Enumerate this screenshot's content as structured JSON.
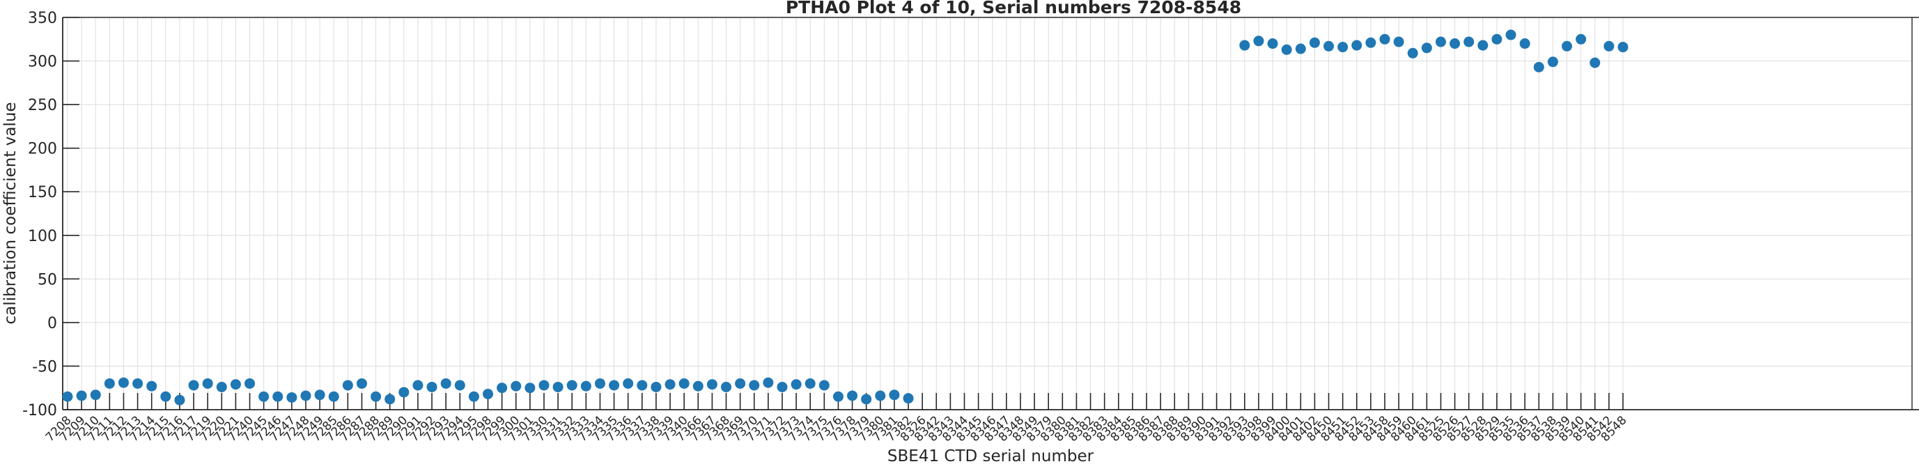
{
  "chart_data": {
    "type": "scatter",
    "title": "PTHA0 Plot 4 of 10, Serial numbers 7208-8548",
    "xlabel": "SBE41 CTD serial number",
    "ylabel": "calibration coefficient value",
    "ylim": [
      -100,
      350
    ],
    "ytick_step": 50,
    "yticks": [
      -100,
      -50,
      0,
      50,
      100,
      150,
      200,
      250,
      300,
      350
    ],
    "grid": "light gray vertical and horizontal gridlines at every tick",
    "legend": "none",
    "marker_style": "filled circle",
    "categories": [
      "7208",
      "7209",
      "7210",
      "7211",
      "7212",
      "7213",
      "7214",
      "7215",
      "7216",
      "7217",
      "7219",
      "7220",
      "7221",
      "7240",
      "7245",
      "7246",
      "7247",
      "7248",
      "7249",
      "7285",
      "7286",
      "7287",
      "7288",
      "7289",
      "7290",
      "7291",
      "7292",
      "7293",
      "7294",
      "7295",
      "7298",
      "7299",
      "7300",
      "7301",
      "7330",
      "7331",
      "7332",
      "7333",
      "7334",
      "7335",
      "7336",
      "7337",
      "7338",
      "7339",
      "7340",
      "7366",
      "7367",
      "7368",
      "7369",
      "7370",
      "7371",
      "7372",
      "7373",
      "7374",
      "7375",
      "7376",
      "7378",
      "7379",
      "7380",
      "7381",
      "7382",
      "8326",
      "8342",
      "8343",
      "8344",
      "8345",
      "8346",
      "8347",
      "8348",
      "8349",
      "8379",
      "8380",
      "8381",
      "8382",
      "8383",
      "8384",
      "8385",
      "8386",
      "8387",
      "8388",
      "8389",
      "8390",
      "8391",
      "8392",
      "8393",
      "8398",
      "8399",
      "8400",
      "8401",
      "8402",
      "8450",
      "8451",
      "8452",
      "8453",
      "8458",
      "8459",
      "8460",
      "8461",
      "8525",
      "8526",
      "8527",
      "8528",
      "8529",
      "8535",
      "8536",
      "8537",
      "8538",
      "8539",
      "8540",
      "8541",
      "8542",
      "8548"
    ],
    "values": [
      -85,
      -84,
      -83,
      -70,
      -69,
      -70,
      -73,
      -85,
      -89,
      -72,
      -70,
      -74,
      -71,
      -70,
      -85,
      -85,
      -86,
      -84,
      -83,
      -85,
      -72,
      -70,
      -85,
      -88,
      -80,
      -72,
      -74,
      -70,
      -72,
      -85,
      -82,
      -75,
      -73,
      -75,
      -72,
      -74,
      -72,
      -73,
      -70,
      -72,
      -70,
      -72,
      -74,
      -71,
      -70,
      -73,
      -71,
      -74,
      -70,
      -72,
      -69,
      -74,
      -71,
      -70,
      -72,
      -85,
      -84,
      -88,
      -84,
      -83,
      -87,
      null,
      null,
      null,
      null,
      null,
      null,
      null,
      null,
      null,
      null,
      null,
      null,
      null,
      null,
      null,
      null,
      null,
      null,
      null,
      null,
      null,
      null,
      null,
      318,
      323,
      320,
      313,
      314,
      321,
      317,
      316,
      318,
      321,
      325,
      322,
      309,
      315,
      322,
      320,
      322,
      318,
      325,
      330,
      320,
      293,
      299,
      317,
      325,
      298,
      317,
      316
    ]
  },
  "colors": {
    "marker": "#1f77b4",
    "axis": "#262626",
    "grid": "#dcdcdc",
    "text": "#262626"
  }
}
